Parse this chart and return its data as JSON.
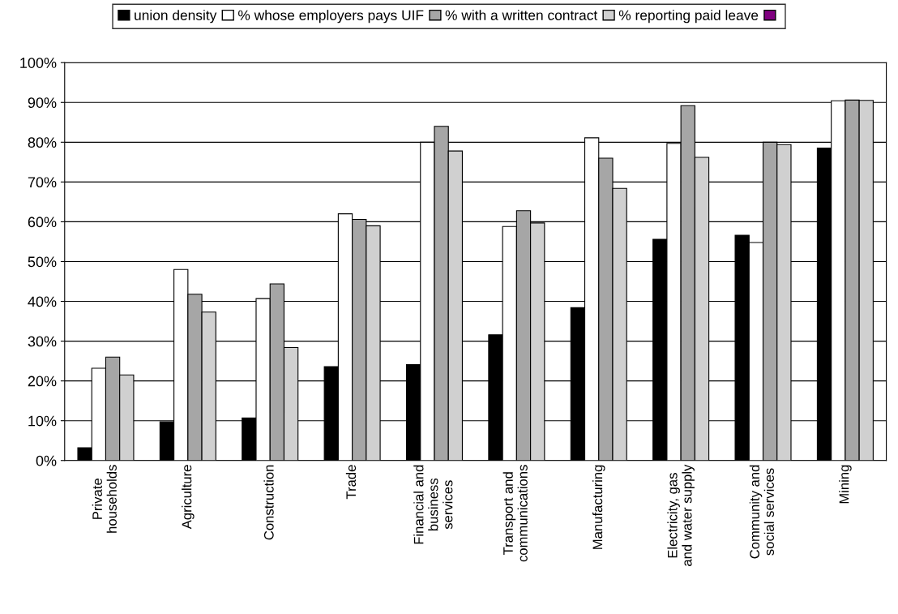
{
  "chart_data": {
    "type": "bar",
    "categories": [
      "Private\nhouseholds",
      "Agriculture",
      "Construction",
      "Trade",
      "Financial and\nbusiness\nservices",
      "Transport and\ncommunications",
      "Manufacturing",
      "Electricity, gas\nand water supply",
      "Community and\nsocial services",
      "Mining"
    ],
    "series": [
      {
        "name": "union density",
        "color": "#000000",
        "values": [
          3.2,
          9.7,
          10.7,
          23.6,
          24.1,
          31.6,
          38.4,
          55.6,
          56.6,
          78.5
        ]
      },
      {
        "name": "% whose employers pays UIF",
        "color": "#ffffff",
        "values": [
          23.2,
          48,
          40.7,
          62,
          80,
          58.8,
          81.1,
          79.7,
          54.8,
          90.4
        ]
      },
      {
        "name": "% with a written contract",
        "color": "#a6a6a6",
        "values": [
          26,
          41.8,
          44.4,
          60.6,
          84,
          62.8,
          76,
          89.2,
          80,
          90.6
        ]
      },
      {
        "name": "% reporting paid leave",
        "color": "#d0d0d0",
        "values": [
          21.5,
          37.3,
          28.4,
          59,
          77.8,
          59.7,
          68.4,
          76.2,
          79.4,
          90.5
        ]
      }
    ],
    "ylim": [
      0,
      100
    ],
    "yticks": [
      {
        "value": 0,
        "label": "0%"
      },
      {
        "value": 10,
        "label": "10%"
      },
      {
        "value": 20,
        "label": "20%"
      },
      {
        "value": 30,
        "label": "30%"
      },
      {
        "value": 40,
        "label": "40%"
      },
      {
        "value": 50,
        "label": "50%"
      },
      {
        "value": 60,
        "label": "60%"
      },
      {
        "value": 70,
        "label": "70%"
      },
      {
        "value": 80,
        "label": "80%"
      },
      {
        "value": 90,
        "label": "90%"
      },
      {
        "value": 100,
        "label": "100%"
      }
    ],
    "grid": "y",
    "legend": "top"
  }
}
